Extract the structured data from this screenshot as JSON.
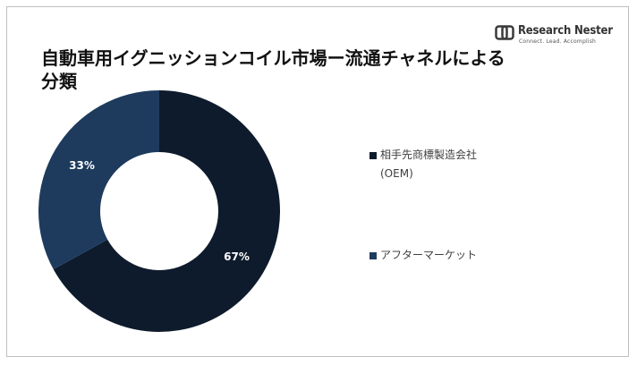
{
  "brand": {
    "name": "Research Nester",
    "tagline": "Connect. Lead. Accomplish"
  },
  "chart_data": {
    "type": "pie",
    "variant": "donut",
    "title": "自動車用イグニッションコイル市場ー流通チャネルによる分類",
    "categories": [
      "相手先商標製造会社 (OEM)",
      "アフターマーケット"
    ],
    "values": [
      67,
      33
    ],
    "data_labels": [
      "67%",
      "33%"
    ],
    "colors": [
      "#0e1b2c",
      "#1e3b5e"
    ],
    "legend_position": "right"
  }
}
